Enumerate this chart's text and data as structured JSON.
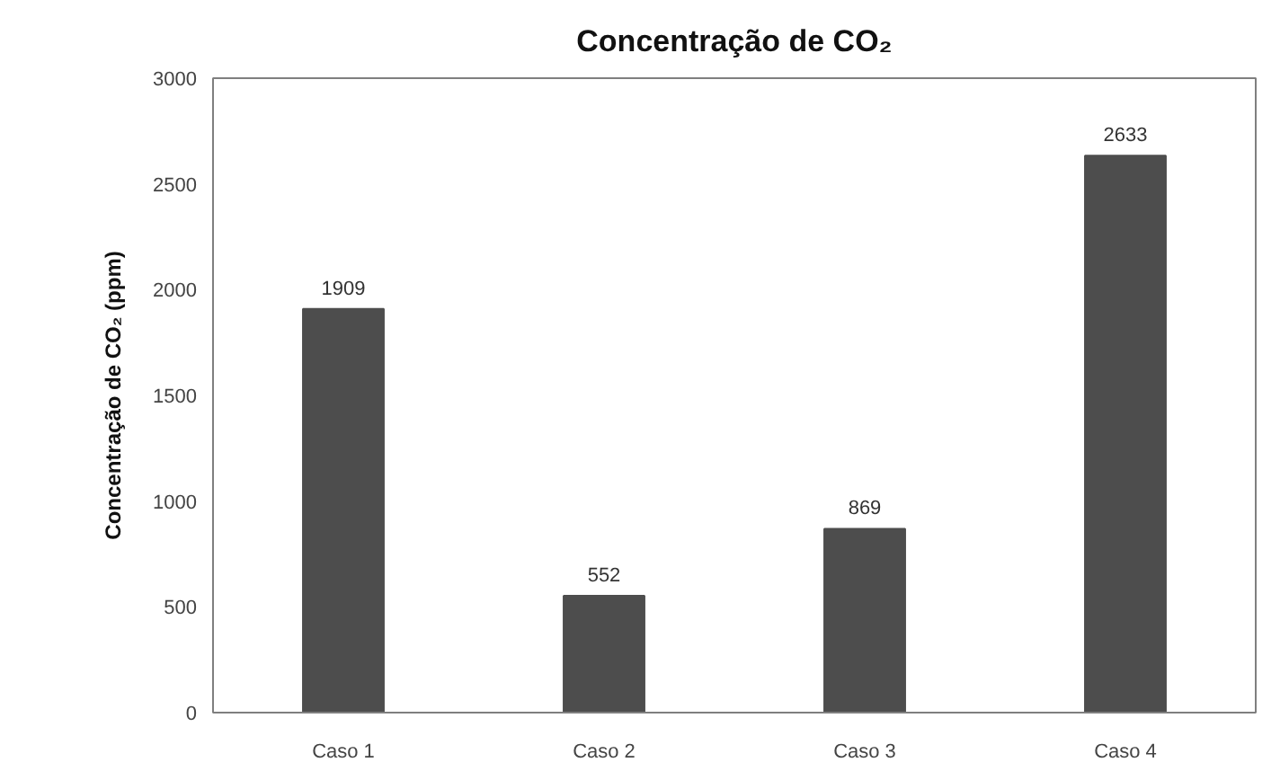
{
  "chart_data": {
    "type": "bar",
    "title": "Concentração de CO₂",
    "ylabel": "Concentração de CO₂ (ppm)",
    "categories": [
      "Caso 1",
      "Caso 2",
      "Caso 3",
      "Caso 4"
    ],
    "values": [
      1909,
      552,
      869,
      2633
    ],
    "color": "#4d4d4d",
    "ylim": [
      0,
      3000
    ],
    "yticks": [
      0,
      500,
      1000,
      1500,
      2000,
      2500,
      3000
    ],
    "grid": false,
    "data_labels": true
  }
}
